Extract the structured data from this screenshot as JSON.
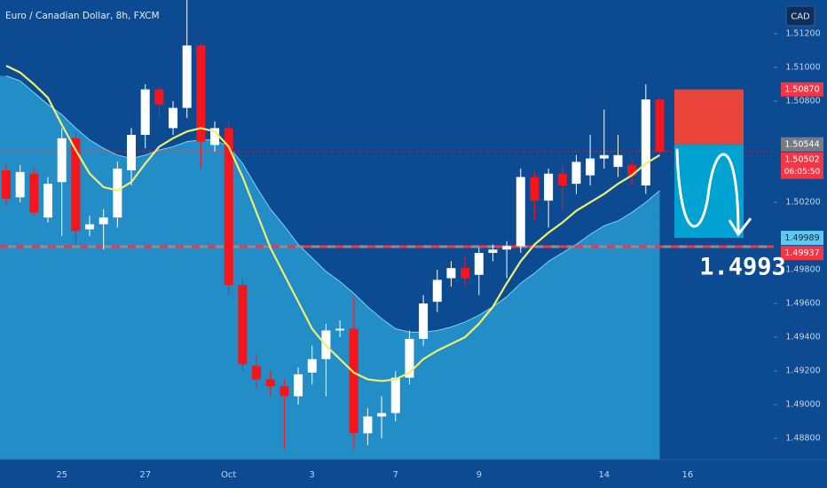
{
  "chart_data": {
    "type": "candlestick",
    "title": "Euro / Canadian Dollar, 8h, FXCM",
    "currency": "CAD",
    "categories": [
      null,
      null,
      null,
      null,
      "25",
      null,
      null,
      null,
      null,
      null,
      "27",
      null,
      null,
      null,
      null,
      null,
      "Oct",
      null,
      null,
      null,
      null,
      null,
      "3",
      null,
      null,
      null,
      null,
      null,
      "7",
      null,
      null,
      null,
      null,
      null,
      "9",
      null,
      null,
      null,
      null,
      null,
      null,
      null,
      null,
      "14",
      null,
      null,
      null,
      null,
      null,
      "16",
      null,
      null
    ],
    "open": [
      1.5039,
      1.5023,
      1.5037,
      1.5011,
      1.5032,
      1.5058,
      1.5004,
      1.5007,
      1.5011,
      1.5039,
      1.506,
      1.5087,
      1.5064,
      1.5076,
      1.5113,
      1.5054,
      1.5064,
      1.4971,
      1.4923,
      1.4915,
      1.4911,
      1.4905,
      1.4919,
      1.4927,
      1.4944,
      1.4945,
      1.4883,
      1.4893,
      1.4895,
      1.4916,
      1.4939,
      1.4961,
      1.4975,
      1.4981,
      1.4977,
      1.499,
      1.4992,
      1.4994,
      1.5035,
      1.5021,
      1.5037,
      1.5031,
      1.5036,
      1.5046,
      1.5041,
      1.5042,
      1.503,
      1.5081,
      null,
      null,
      null,
      null
    ],
    "high": [
      1.5043,
      1.5042,
      1.504,
      1.5035,
      1.5064,
      1.5061,
      1.5012,
      1.5016,
      1.5044,
      1.5064,
      1.509,
      1.5088,
      1.508,
      1.514,
      1.5114,
      1.5068,
      1.5068,
      1.4975,
      1.493,
      1.492,
      1.4915,
      1.4922,
      1.4935,
      1.4948,
      1.495,
      1.4964,
      1.4898,
      1.4905,
      1.492,
      1.4944,
      1.4965,
      1.498,
      1.4985,
      1.4988,
      1.4993,
      1.4995,
      1.4997,
      1.504,
      1.5038,
      1.504,
      1.5042,
      1.5048,
      1.506,
      1.5075,
      1.506,
      1.5045,
      1.509,
      1.5082,
      null,
      null,
      null,
      null
    ],
    "low": [
      1.5018,
      1.502,
      1.5012,
      1.5008,
      1.5,
      1.4995,
      1.5,
      1.4992,
      1.5005,
      1.503,
      1.5052,
      1.507,
      1.506,
      1.507,
      1.504,
      1.505,
      1.4965,
      1.492,
      1.491,
      1.4905,
      1.4874,
      1.49,
      1.4912,
      1.4905,
      1.494,
      1.4874,
      1.4876,
      1.488,
      1.489,
      1.4912,
      1.4935,
      1.4955,
      1.497,
      1.497,
      1.4965,
      1.4985,
      1.4975,
      1.499,
      1.501,
      1.5005,
      1.5015,
      1.5025,
      1.503,
      1.504,
      1.5035,
      1.503,
      1.5025,
      1.5048,
      null,
      null,
      null,
      null
    ],
    "close": [
      1.5022,
      1.5038,
      1.5014,
      1.5031,
      1.5058,
      1.5003,
      1.5007,
      1.5011,
      1.504,
      1.506,
      1.5087,
      1.5078,
      1.5076,
      1.5113,
      1.5056,
      1.5064,
      1.4971,
      1.4924,
      1.4915,
      1.4911,
      1.4905,
      1.4918,
      1.4927,
      1.4944,
      1.4945,
      1.4883,
      1.4893,
      1.4895,
      1.4916,
      1.4939,
      1.496,
      1.4974,
      1.4981,
      1.4975,
      1.499,
      1.4992,
      1.4994,
      1.5035,
      1.5021,
      1.5037,
      1.503,
      1.5044,
      1.5046,
      1.5048,
      1.5048,
      1.5036,
      1.5081,
      1.505,
      null,
      null,
      null,
      null
    ],
    "up_color": "#ffffff",
    "down_color": "#f5151b",
    "overlays": [
      {
        "type": "area",
        "color": "#2aa3d8",
        "values": [
          1.5095,
          1.5092,
          1.5085,
          1.5078,
          1.5072,
          1.5064,
          1.5057,
          1.5052,
          1.5048,
          1.5046,
          1.5048,
          1.5051,
          1.5053,
          1.5056,
          1.5057,
          1.5057,
          1.5053,
          1.5043,
          1.5029,
          1.5016,
          1.5006,
          1.4995,
          1.4987,
          1.4979,
          1.4973,
          1.4966,
          1.4958,
          1.4951,
          1.4945,
          1.4943,
          1.4943,
          1.4944,
          1.4946,
          1.4949,
          1.4953,
          1.4958,
          1.4964,
          1.4972,
          1.4978,
          1.4985,
          1.499,
          1.4995,
          1.5001,
          1.5006,
          1.5009,
          1.5014,
          1.502,
          1.5027,
          null,
          null,
          null,
          null
        ]
      },
      {
        "type": "line",
        "color": "#f0ee6e",
        "values": [
          1.5101,
          1.5097,
          1.509,
          1.5082,
          1.5066,
          1.5051,
          1.5037,
          1.5029,
          1.5027,
          1.5032,
          1.5043,
          1.5053,
          1.5058,
          1.5062,
          1.5064,
          1.5062,
          1.5053,
          1.5035,
          1.5014,
          1.4993,
          1.4977,
          1.4961,
          1.4945,
          1.4935,
          1.4927,
          1.4919,
          1.4915,
          1.4914,
          1.4915,
          1.4919,
          1.4927,
          1.4932,
          1.4936,
          1.494,
          1.4948,
          1.4958,
          1.4972,
          1.4985,
          1.4995,
          1.5002,
          1.5008,
          1.5015,
          1.502,
          1.5025,
          1.5031,
          1.5036,
          1.5043,
          1.5048,
          null,
          null,
          null,
          null
        ]
      }
    ],
    "ylim": [
      1.48674,
      1.514
    ],
    "yticks": [
      {
        "value": 1.512,
        "label": "1.51200"
      },
      {
        "value": 1.51,
        "label": "1.51000"
      },
      {
        "value": 1.508,
        "label": "1.50800"
      },
      {
        "value": 1.502,
        "label": "1.50200"
      },
      {
        "value": 1.498,
        "label": "1.49800"
      },
      {
        "value": 1.496,
        "label": "1.49600"
      },
      {
        "value": 1.494,
        "label": "1.49400"
      },
      {
        "value": 1.492,
        "label": "1.49200"
      },
      {
        "value": 1.49,
        "label": "1.49000"
      },
      {
        "value": 1.488,
        "label": "1.48800"
      }
    ],
    "grid": false,
    "price_labels": [
      {
        "value": 1.5087,
        "label": "1.50870",
        "color": "#f23645"
      },
      {
        "value": 1.50544,
        "label": "1.50544",
        "color": "#787b86"
      },
      {
        "value": 1.50502,
        "label": "1.50502",
        "color": "#f23645",
        "countdown": "06:05:50"
      },
      {
        "value": 1.49989,
        "label": "1.49989",
        "color": "#5fc8ef"
      },
      {
        "value": 1.49937,
        "label": "1.49937",
        "color": "#f23645"
      }
    ],
    "annotation": "1.4993"
  }
}
